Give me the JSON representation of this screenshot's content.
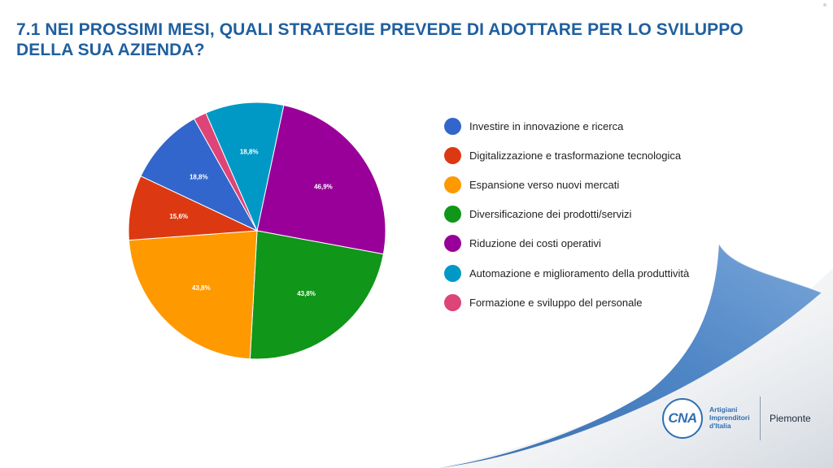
{
  "title": "7.1 NEI PROSSIMI MESI, QUALI STRATEGIE PREVEDE DI ADOTTARE PER LO SVILUPPO DELLA SUA AZIENDA?",
  "chart_data": {
    "type": "pie",
    "title": "7.1 NEI PROSSIMI MESI, QUALI STRATEGIE PREVEDE DI ADOTTARE PER LO SVILUPPO DELLA SUA AZIENDA?",
    "legend_position": "right",
    "slices": [
      {
        "name": "Investire in innovazione e ricerca",
        "value": 18.8,
        "label": "18,8%",
        "color": "#3366cc"
      },
      {
        "name": "Digitalizzazione e trasformazione tecnologica",
        "value": 15.6,
        "label": "15,6%",
        "color": "#dc3912"
      },
      {
        "name": "Espansione verso nuovi mercati",
        "value": 43.8,
        "label": "43,8%",
        "color": "#ff9900"
      },
      {
        "name": "Diversificazione dei prodotti/servizi",
        "value": 43.8,
        "label": "43,8%",
        "color": "#109618"
      },
      {
        "name": "Riduzione dei costi operativi",
        "value": 46.9,
        "label": "46,9%",
        "color": "#990099"
      },
      {
        "name": "Automazione e miglioramento della produttività",
        "value": 18.8,
        "label": "18,8%",
        "color": "#0099c6"
      },
      {
        "name": "Formazione e sviluppo del personale",
        "value": 3.1,
        "label": "",
        "color": "#dd4477"
      }
    ]
  },
  "logo": {
    "mark": "CNA",
    "lines": [
      "Artigiani",
      "Imprenditori",
      "d'Italia"
    ],
    "region": "Piemonte",
    "color": "#2f6fb3"
  },
  "decor": {
    "curl_color": "#4a7fbf"
  }
}
